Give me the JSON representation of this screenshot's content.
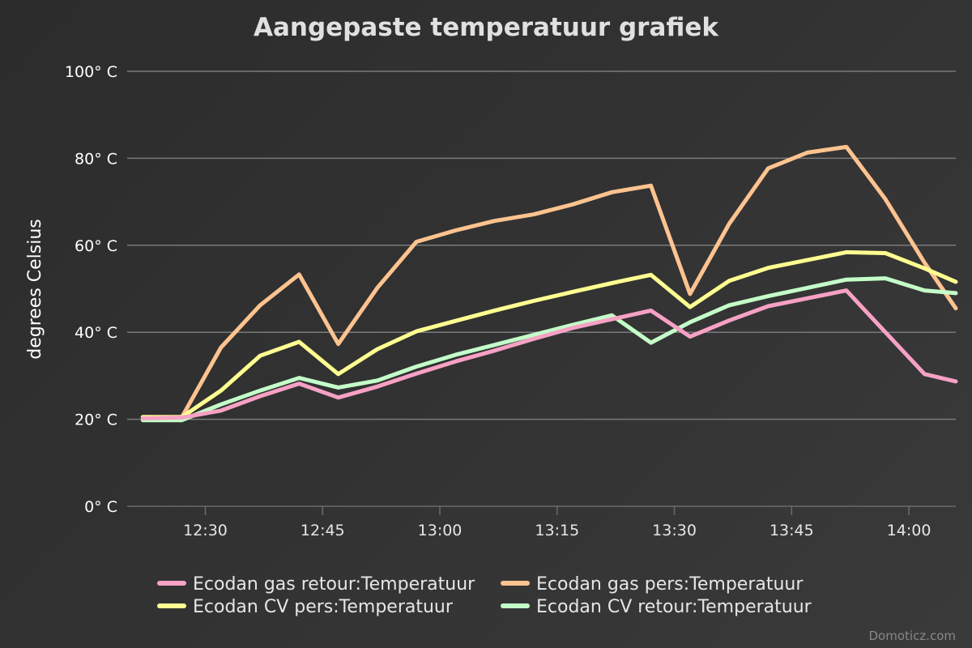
{
  "chart_data": {
    "type": "line",
    "title": "Aangepaste temperatuur grafiek",
    "ylabel": "degrees Celsius",
    "xlabel": "",
    "ylim": [
      0,
      100
    ],
    "y_ticks": [
      0,
      20,
      40,
      60,
      80,
      100
    ],
    "y_tick_labels": [
      "0° C",
      "20° C",
      "40° C",
      "60° C",
      "80° C",
      "100° C"
    ],
    "x_tick_labels": [
      "12:30",
      "12:45",
      "13:00",
      "13:15",
      "13:30",
      "13:45",
      "14:00"
    ],
    "x_tick_minutes": [
      750,
      765,
      780,
      795,
      810,
      825,
      840
    ],
    "x_range_minutes": [
      740,
      846
    ],
    "x": [
      "12:22",
      "12:27",
      "12:32",
      "12:37",
      "12:42",
      "12:47",
      "12:52",
      "12:57",
      "13:02",
      "13:07",
      "13:12",
      "13:17",
      "13:22",
      "13:27",
      "13:32",
      "13:37",
      "13:42",
      "13:47",
      "13:52",
      "13:57",
      "14:02",
      "14:06"
    ],
    "x_minutes": [
      742,
      747,
      752,
      757,
      762,
      767,
      772,
      777,
      782,
      787,
      792,
      797,
      802,
      807,
      812,
      817,
      822,
      827,
      832,
      837,
      842,
      846
    ],
    "grid": true,
    "legend_position": "bottom",
    "series": [
      {
        "name": "Ecodan gas retour:Temperatuur",
        "color": "#f7a1c4",
        "values": [
          20.2,
          20.4,
          22.0,
          25.3,
          28.2,
          25.0,
          27.5,
          30.5,
          33.3,
          35.8,
          38.5,
          41.0,
          43.0,
          45.0,
          39.0,
          42.7,
          46.0,
          47.8,
          49.6,
          40.0,
          30.4,
          28.7
        ]
      },
      {
        "name": "Ecodan gas pers:Temperatuur",
        "color": "#ffc38f",
        "values": [
          20.5,
          20.5,
          36.5,
          46.2,
          53.3,
          37.3,
          50.2,
          60.8,
          63.4,
          65.6,
          67.1,
          69.4,
          72.2,
          73.7,
          48.8,
          64.9,
          77.7,
          81.3,
          82.6,
          70.6,
          56.0,
          45.5
        ]
      },
      {
        "name": "Ecodan CV pers:Temperatuur",
        "color": "#ffff91",
        "values": [
          20.5,
          20.5,
          26.6,
          34.6,
          37.8,
          30.4,
          36.1,
          40.2,
          42.6,
          45.0,
          47.2,
          49.3,
          51.3,
          53.2,
          45.8,
          51.8,
          54.8,
          56.6,
          58.4,
          58.2,
          54.7,
          51.6
        ]
      },
      {
        "name": "Ecodan CV retour:Temperatuur",
        "color": "#c4ffc9",
        "values": [
          19.8,
          19.8,
          23.4,
          26.6,
          29.5,
          27.3,
          28.9,
          32.1,
          34.8,
          37.1,
          39.4,
          41.7,
          43.9,
          37.6,
          42.3,
          46.2,
          48.3,
          50.2,
          52.1,
          52.4,
          49.6,
          49.0
        ]
      }
    ]
  },
  "credits": "Domoticz.com"
}
